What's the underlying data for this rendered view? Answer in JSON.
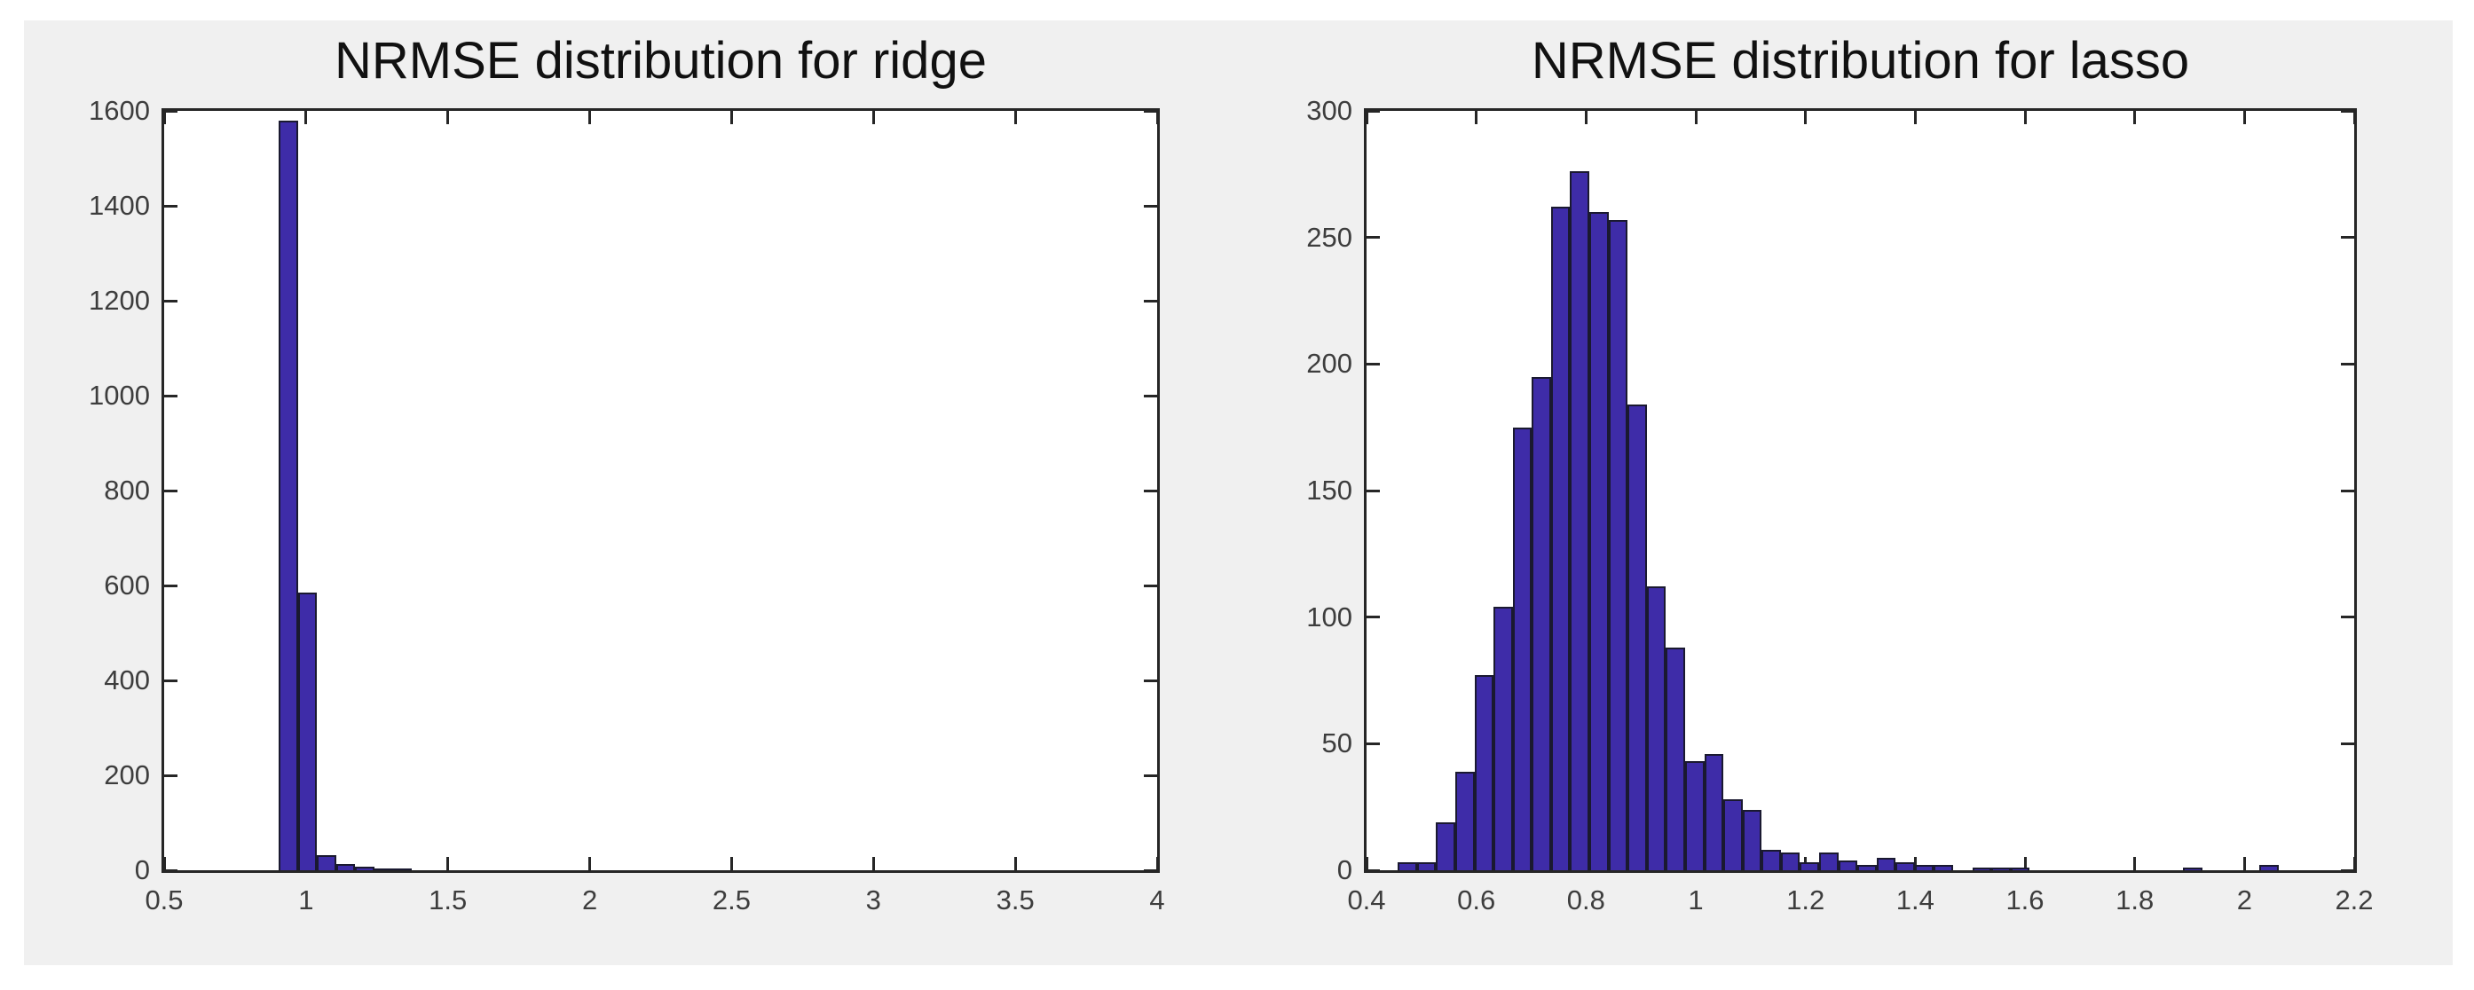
{
  "figure": {
    "background": "#f0f0f0",
    "axes_background": "#ffffff",
    "axis_color": "#262626",
    "tick_label_color": "#3d3d3d",
    "title_color": "#111111"
  },
  "chart_data": [
    {
      "type": "bar",
      "title": "NRMSE distribution for ridge",
      "xlabel": "",
      "ylabel": "",
      "xlim": [
        0.5,
        4
      ],
      "ylim": [
        0,
        1600
      ],
      "grid": false,
      "legend_position": "none",
      "box": true,
      "xticks": [
        0.5,
        1,
        1.5,
        2,
        2.5,
        3,
        3.5,
        4
      ],
      "xtick_labels": [
        "0.5",
        "1",
        "1.5",
        "2",
        "2.5",
        "3",
        "3.5",
        "4"
      ],
      "yticks": [
        0,
        200,
        400,
        600,
        800,
        1000,
        1200,
        1400,
        1600
      ],
      "ytick_labels": [
        "0",
        "200",
        "400",
        "600",
        "800",
        "1000",
        "1200",
        "1400",
        "1600"
      ],
      "bar_face_color": "#3e2ca8",
      "bar_edge_color": "#1a1930",
      "bins": {
        "start": 0.905,
        "width": 0.067,
        "counts": [
          1580,
          585,
          32,
          13,
          8,
          4,
          2
        ]
      }
    },
    {
      "type": "bar",
      "title": "NRMSE distribution for lasso",
      "xlabel": "",
      "ylabel": "",
      "xlim": [
        0.4,
        2.2
      ],
      "ylim": [
        0,
        300
      ],
      "grid": false,
      "legend_position": "none",
      "box": true,
      "xticks": [
        0.4,
        0.6,
        0.8,
        1,
        1.2,
        1.4,
        1.6,
        1.8,
        2,
        2.2
      ],
      "xtick_labels": [
        "0.4",
        "0.6",
        "0.8",
        "1",
        "1.2",
        "1.4",
        "1.6",
        "1.8",
        "2",
        "2.2"
      ],
      "yticks": [
        0,
        50,
        100,
        150,
        200,
        250,
        300
      ],
      "ytick_labels": [
        "0",
        "50",
        "100",
        "150",
        "200",
        "250",
        "300"
      ],
      "bar_face_color": "#3e2ca8",
      "bar_edge_color": "#1a1930",
      "bins": {
        "start": 0.457,
        "width": 0.0349,
        "counts": [
          3,
          3,
          19,
          39,
          77,
          104,
          175,
          195,
          262,
          276,
          260,
          257,
          184,
          112,
          88,
          43,
          46,
          28,
          24,
          8,
          7,
          3,
          7,
          4,
          2,
          5,
          3,
          2,
          2,
          0,
          1,
          1,
          1,
          0,
          0,
          0,
          0,
          0,
          0,
          0,
          0,
          1,
          0,
          0,
          0,
          2
        ]
      }
    }
  ]
}
